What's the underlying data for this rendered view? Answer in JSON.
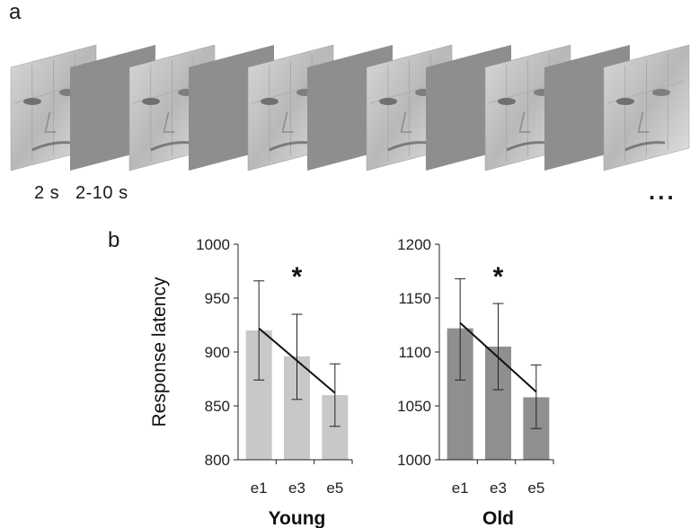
{
  "figure": {
    "panel_a_label": "a",
    "panel_b_label": "b",
    "timing_face": "2 s",
    "timing_blank": "2-10 s",
    "continuation": "...",
    "sequence": [
      "face-house-image",
      "blank",
      "face-house-image",
      "blank",
      "face-house-image",
      "blank",
      "face-house-image",
      "blank",
      "face-house-image",
      "blank",
      "face-house-image"
    ]
  },
  "colors": {
    "young_bar": "#c8c8c8",
    "old_bar": "#8f8f8f",
    "blank_frame": "#8e8e8e",
    "axis": "#222222"
  },
  "chart_data": [
    {
      "type": "bar",
      "title": "Young",
      "xlabel": "Young",
      "ylabel": "Response latency",
      "categories": [
        "e1",
        "e3",
        "e5"
      ],
      "values": [
        920,
        896,
        860
      ],
      "error": [
        [
          874,
          966
        ],
        [
          856,
          935
        ],
        [
          831,
          889
        ]
      ],
      "trend": [
        [
          0,
          922
        ],
        [
          2,
          862
        ]
      ],
      "ylim": [
        800,
        1000
      ],
      "yticks": [
        800,
        850,
        900,
        950,
        1000
      ],
      "significance": "*"
    },
    {
      "type": "bar",
      "title": "Old",
      "xlabel": "Old",
      "ylabel": "",
      "categories": [
        "e1",
        "e3",
        "e5"
      ],
      "values": [
        1122,
        1105,
        1058
      ],
      "error": [
        [
          1074,
          1168
        ],
        [
          1065,
          1145
        ],
        [
          1029,
          1088
        ]
      ],
      "trend": [
        [
          0,
          1127
        ],
        [
          2,
          1063
        ]
      ],
      "ylim": [
        1000,
        1200
      ],
      "yticks": [
        1000,
        1050,
        1100,
        1150,
        1200
      ],
      "significance": "*"
    }
  ]
}
